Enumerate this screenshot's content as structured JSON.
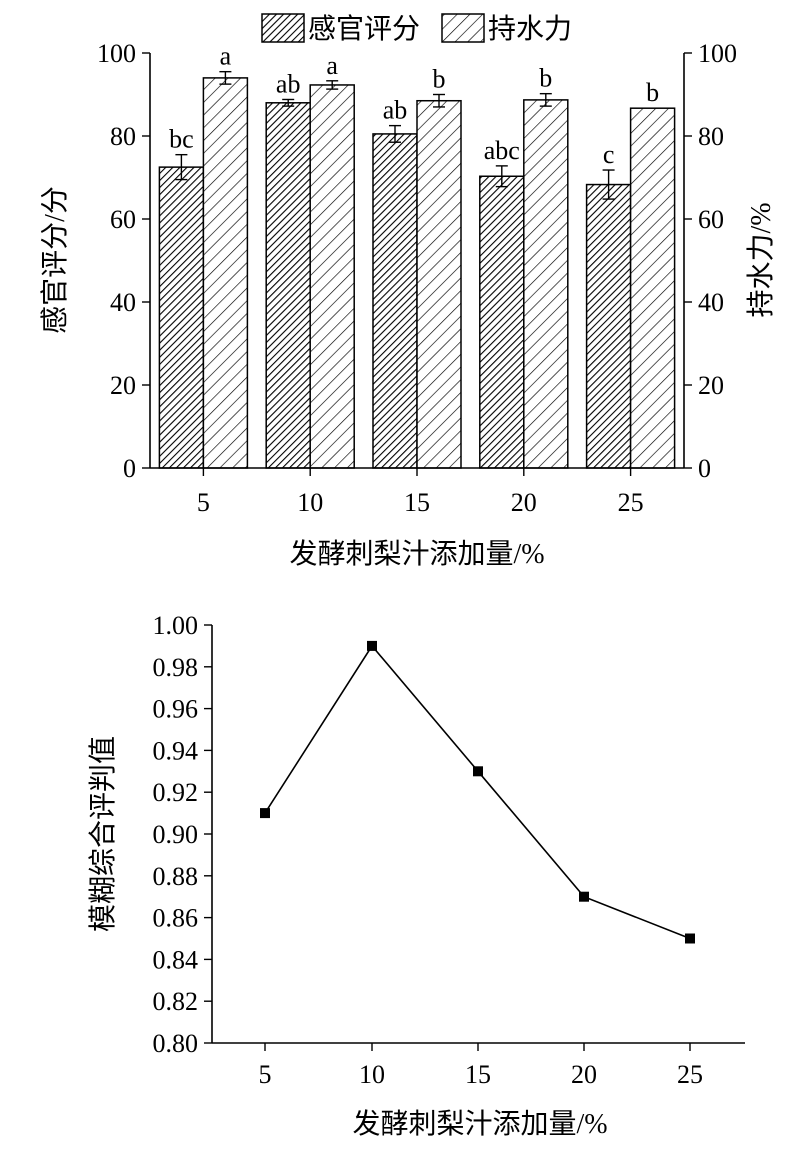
{
  "chart_data": [
    {
      "type": "bar",
      "categories": [
        "5",
        "10",
        "15",
        "20",
        "25"
      ],
      "series": [
        {
          "name": "感官评分",
          "axis": "left",
          "values": [
            72.5,
            88.0,
            80.5,
            70.3,
            68.3
          ],
          "errors": [
            3.0,
            0.8,
            2.0,
            2.5,
            3.5
          ],
          "letters": [
            "bc",
            "ab",
            "ab",
            "abc",
            "c"
          ],
          "pattern": "dense-hatch"
        },
        {
          "name": "持水力",
          "axis": "right",
          "values": [
            94.0,
            92.3,
            88.5,
            88.7,
            86.7
          ],
          "errors": [
            1.5,
            1.0,
            1.5,
            1.5,
            0
          ],
          "letters": [
            "a",
            "a",
            "b",
            "b",
            "b"
          ],
          "pattern": "sparse-hatch"
        }
      ],
      "xlabel": "发酵刺梨汁添加量/%",
      "ylabel": "感官评分/分",
      "y2label": "持水力/%",
      "ylim": [
        0,
        100
      ],
      "y2lim": [
        0,
        100
      ],
      "yticks": [
        "0",
        "20",
        "40",
        "60",
        "80",
        "100"
      ],
      "y2ticks": [
        "0",
        "20",
        "40",
        "60",
        "80",
        "100"
      ],
      "legend_position": "top",
      "grid": false
    },
    {
      "type": "line",
      "x": [
        "5",
        "10",
        "15",
        "20",
        "25"
      ],
      "series": [
        {
          "values": [
            0.91,
            0.99,
            0.93,
            0.87,
            0.85
          ],
          "marker": "square"
        }
      ],
      "xlabel": "发酵刺梨汁添加量/%",
      "ylabel": "模糊综合评判值",
      "ylim": [
        0.8,
        1.0
      ],
      "yticks": [
        "0.80",
        "0.82",
        "0.84",
        "0.86",
        "0.88",
        "0.90",
        "0.92",
        "0.94",
        "0.96",
        "0.98",
        "1.00"
      ],
      "grid": false
    }
  ]
}
